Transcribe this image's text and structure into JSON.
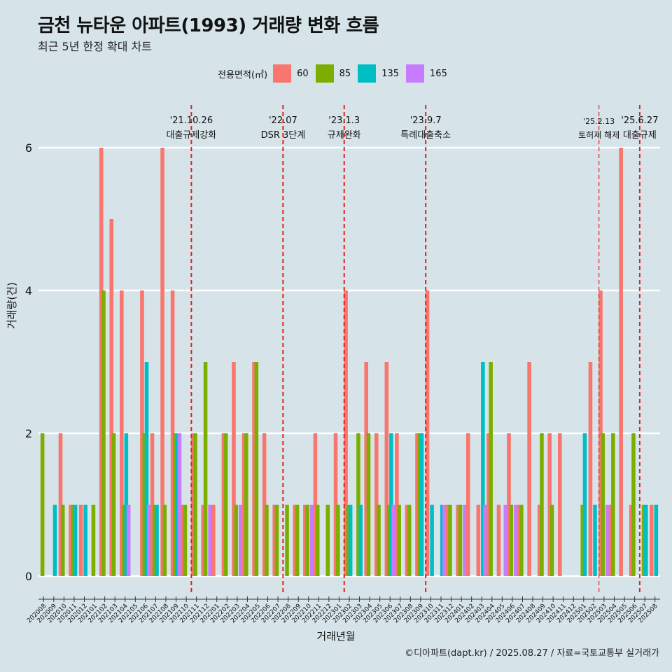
{
  "title": "금천 뉴타운 아파트(1993) 거래량 변화 흐름",
  "subtitle": "최근 5년 한정 확대 차트",
  "legend_title": "전용면적(㎡)",
  "caption": "©디아파트(dapt.kr) / 2025.08.27 / 자료=국토교통부 실거래가",
  "chart_data": {
    "type": "bar",
    "title": "금천 뉴타운 아파트(1993) 거래량 변화 흐름",
    "xlabel": "거래년월",
    "ylabel": "거래량(건)",
    "ylim": [
      0,
      6.8
    ],
    "yticks": [
      0,
      2,
      4,
      6
    ],
    "grid": true,
    "legend_position": "top",
    "series": [
      {
        "name": "60",
        "color": "#F8766D"
      },
      {
        "name": "85",
        "color": "#7CAE00"
      },
      {
        "name": "135",
        "color": "#00BFC4"
      },
      {
        "name": "165",
        "color": "#C77CFF"
      }
    ],
    "months": [
      {
        "month": "202008",
        "60": 0,
        "85": 2,
        "135": 0,
        "165": 0
      },
      {
        "month": "202009",
        "60": 0,
        "85": 0,
        "135": 1,
        "165": 0
      },
      {
        "month": "202010",
        "60": 2,
        "85": 1,
        "135": 0,
        "165": 0
      },
      {
        "month": "202011",
        "60": 1,
        "85": 1,
        "135": 1,
        "165": 0
      },
      {
        "month": "202012",
        "60": 1,
        "85": 0,
        "135": 1,
        "165": 0
      },
      {
        "month": "202101",
        "60": 0,
        "85": 1,
        "135": 0,
        "165": 0
      },
      {
        "month": "202102",
        "60": 6,
        "85": 4,
        "135": 0,
        "165": 0
      },
      {
        "month": "202103",
        "60": 5,
        "85": 2,
        "135": 0,
        "165": 0
      },
      {
        "month": "202104",
        "60": 4,
        "85": 1,
        "135": 2,
        "165": 1
      },
      {
        "month": "202105",
        "60": 0,
        "85": 0,
        "135": 0,
        "165": 0
      },
      {
        "month": "202106",
        "60": 4,
        "85": 2,
        "135": 3,
        "165": 1
      },
      {
        "month": "202107",
        "60": 2,
        "85": 1,
        "135": 1,
        "165": 0
      },
      {
        "month": "202108",
        "60": 6,
        "85": 1,
        "135": 0,
        "165": 0
      },
      {
        "month": "202109",
        "60": 4,
        "85": 2,
        "135": 2,
        "165": 2
      },
      {
        "month": "202110",
        "60": 1,
        "85": 1,
        "135": 0,
        "165": 0
      },
      {
        "month": "202111",
        "60": 2,
        "85": 2,
        "135": 0,
        "165": 0
      },
      {
        "month": "202112",
        "60": 1,
        "85": 3,
        "135": 0,
        "165": 1
      },
      {
        "month": "202201",
        "60": 1,
        "85": 0,
        "135": 0,
        "165": 0
      },
      {
        "month": "202202",
        "60": 2,
        "85": 2,
        "135": 0,
        "165": 0
      },
      {
        "month": "202203",
        "60": 3,
        "85": 1,
        "135": 0,
        "165": 1
      },
      {
        "month": "202204",
        "60": 2,
        "85": 2,
        "135": 0,
        "165": 0
      },
      {
        "month": "202205",
        "60": 3,
        "85": 3,
        "135": 0,
        "165": 0
      },
      {
        "month": "202206",
        "60": 2,
        "85": 1,
        "135": 0,
        "165": 0
      },
      {
        "month": "202207",
        "60": 1,
        "85": 1,
        "135": 0,
        "165": 0
      },
      {
        "month": "202208",
        "60": 0,
        "85": 1,
        "135": 0,
        "165": 0
      },
      {
        "month": "202209",
        "60": 1,
        "85": 1,
        "135": 0,
        "165": 0
      },
      {
        "month": "202210",
        "60": 1,
        "85": 1,
        "135": 0,
        "165": 1
      },
      {
        "month": "202211",
        "60": 2,
        "85": 1,
        "135": 0,
        "165": 0
      },
      {
        "month": "202212",
        "60": 0,
        "85": 1,
        "135": 0,
        "165": 0
      },
      {
        "month": "202301",
        "60": 2,
        "85": 1,
        "135": 0,
        "165": 0
      },
      {
        "month": "202302",
        "60": 4,
        "85": 1,
        "135": 1,
        "165": 0
      },
      {
        "month": "202303",
        "60": 0,
        "85": 2,
        "135": 1,
        "165": 0
      },
      {
        "month": "202304",
        "60": 3,
        "85": 2,
        "135": 0,
        "165": 0
      },
      {
        "month": "202305",
        "60": 2,
        "85": 1,
        "135": 0,
        "165": 0
      },
      {
        "month": "202306",
        "60": 3,
        "85": 1,
        "135": 2,
        "165": 1
      },
      {
        "month": "202307",
        "60": 2,
        "85": 1,
        "135": 0,
        "165": 0
      },
      {
        "month": "202308",
        "60": 1,
        "85": 1,
        "135": 0,
        "165": 0
      },
      {
        "month": "202309",
        "60": 2,
        "85": 2,
        "135": 2,
        "165": 0
      },
      {
        "month": "202310",
        "60": 4,
        "85": 0,
        "135": 1,
        "165": 0
      },
      {
        "month": "202311",
        "60": 0,
        "85": 0,
        "135": 1,
        "165": 1
      },
      {
        "month": "202312",
        "60": 1,
        "85": 1,
        "135": 0,
        "165": 0
      },
      {
        "month": "202401",
        "60": 1,
        "85": 1,
        "135": 0,
        "165": 1
      },
      {
        "month": "202402",
        "60": 2,
        "85": 0,
        "135": 0,
        "165": 0
      },
      {
        "month": "202403",
        "60": 1,
        "85": 0,
        "135": 3,
        "165": 1
      },
      {
        "month": "202404",
        "60": 2,
        "85": 3,
        "135": 0,
        "165": 0
      },
      {
        "month": "202405",
        "60": 1,
        "85": 0,
        "135": 0,
        "165": 1
      },
      {
        "month": "202406",
        "60": 2,
        "85": 1,
        "135": 0,
        "165": 1
      },
      {
        "month": "202407",
        "60": 1,
        "85": 1,
        "135": 0,
        "165": 0
      },
      {
        "month": "202408",
        "60": 3,
        "85": 0,
        "135": 0,
        "165": 0
      },
      {
        "month": "202409",
        "60": 1,
        "85": 2,
        "135": 0,
        "165": 0
      },
      {
        "month": "202410",
        "60": 2,
        "85": 1,
        "135": 0,
        "165": 0
      },
      {
        "month": "202411",
        "60": 2,
        "85": 0,
        "135": 0,
        "165": 0
      },
      {
        "month": "202412",
        "60": 0,
        "85": 0,
        "135": 0,
        "165": 0
      },
      {
        "month": "202501",
        "60": 0,
        "85": 1,
        "135": 2,
        "165": 0
      },
      {
        "month": "202502",
        "60": 3,
        "85": 0,
        "135": 1,
        "165": 0
      },
      {
        "month": "202503",
        "60": 4,
        "85": 2,
        "135": 0,
        "165": 1
      },
      {
        "month": "202504",
        "60": 1,
        "85": 2,
        "135": 0,
        "165": 0
      },
      {
        "month": "202505",
        "60": 6,
        "85": 0,
        "135": 0,
        "165": 0
      },
      {
        "month": "202506",
        "60": 1,
        "85": 2,
        "135": 0,
        "165": 0
      },
      {
        "month": "202507",
        "60": 0,
        "85": 1,
        "135": 1,
        "165": 0
      },
      {
        "month": "202508",
        "60": 1,
        "85": 0,
        "135": 1,
        "165": 0
      }
    ],
    "events": [
      {
        "date": "'21.10.26",
        "label": "대출규제강화",
        "after_month": "202110",
        "style": "bold"
      },
      {
        "date": "'22.07",
        "label": "DSR 3단계",
        "after_month": "202207",
        "style": "bold"
      },
      {
        "date": "'23.1.3",
        "label": "규제완화",
        "after_month": "202301",
        "style": "bold"
      },
      {
        "date": "'23.9.7",
        "label": "특례대출축소",
        "after_month": "202309",
        "style": "bold"
      },
      {
        "date": "'25.2.13",
        "label": "토허제 해제",
        "after_month": "202502",
        "style": "thin"
      },
      {
        "date": "'25.6.27",
        "label": "대출규제",
        "after_month": "202506",
        "style": "bold"
      }
    ]
  }
}
